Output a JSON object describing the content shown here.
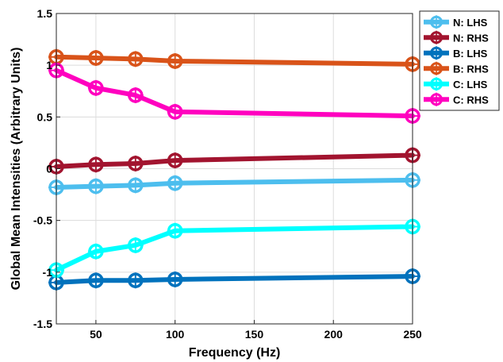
{
  "chart_data": {
    "type": "line",
    "title": "",
    "xlabel": "Frequency (Hz)",
    "ylabel": "Global Mean Intensities (Arbitrary Units)",
    "xlim": [
      25,
      250
    ],
    "ylim": [
      -1.5,
      1.5
    ],
    "xticks": [
      50,
      100,
      150,
      200,
      250
    ],
    "xtick_labels": [
      "50",
      "100",
      "150",
      "200",
      "250"
    ],
    "yticks": [
      -1.5,
      -1,
      -0.5,
      0,
      0.5,
      1,
      1.5
    ],
    "ytick_labels": [
      "-1.5",
      "-1",
      "-0.5",
      "0",
      "0.5",
      "1",
      "1.5"
    ],
    "grid": true,
    "legend_position": "outside-top-right",
    "marker": "circle-with-crosshair",
    "x": [
      25,
      50,
      75,
      100,
      250
    ],
    "series": [
      {
        "name": "N: LHS",
        "color": "#4DBEEE",
        "values": [
          -0.18,
          -0.17,
          -0.16,
          -0.14,
          -0.11
        ]
      },
      {
        "name": "N: RHS",
        "color": "#A2142F",
        "values": [
          0.02,
          0.04,
          0.05,
          0.08,
          0.13
        ]
      },
      {
        "name": "B: LHS",
        "color": "#0072BD",
        "values": [
          -1.1,
          -1.08,
          -1.08,
          -1.07,
          -1.04
        ]
      },
      {
        "name": "B: RHS",
        "color": "#D95319",
        "values": [
          1.08,
          1.07,
          1.06,
          1.04,
          1.01
        ]
      },
      {
        "name": "C: LHS",
        "color": "#00FFFF",
        "values": [
          -0.98,
          -0.8,
          -0.74,
          -0.6,
          -0.56
        ]
      },
      {
        "name": "C: RHS",
        "color": "#FF00BF",
        "values": [
          0.95,
          0.78,
          0.71,
          0.55,
          0.51
        ]
      }
    ]
  }
}
